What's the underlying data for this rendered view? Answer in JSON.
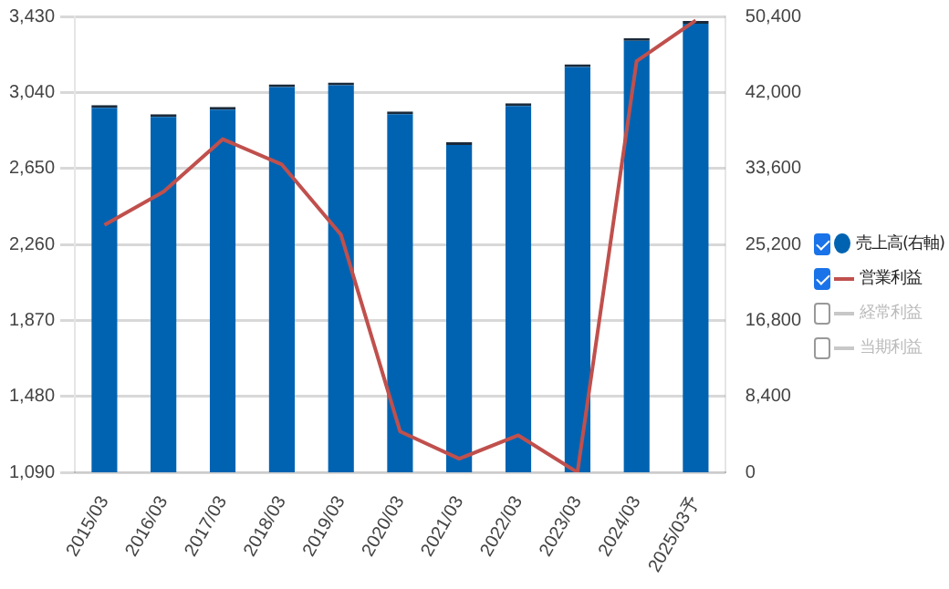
{
  "chart_data": {
    "type": "bar",
    "categories": [
      "2015/03",
      "2016/03",
      "2017/03",
      "2018/03",
      "2019/03",
      "2020/03",
      "2021/03",
      "2022/03",
      "2023/03",
      "2024/03",
      "2025/03予"
    ],
    "series": [
      {
        "name": "売上高(右軸)",
        "axis": "y2",
        "color": "#0063b1",
        "values": [
          40600,
          39600,
          40400,
          42900,
          43100,
          39900,
          36500,
          40800,
          45100,
          48000,
          49900
        ]
      },
      {
        "name": "営業利益",
        "type": "line",
        "color": "#c0504d",
        "values": [
          2360,
          2530,
          2800,
          2670,
          2310,
          1300,
          1160,
          1280,
          1090,
          3200,
          3410
        ]
      },
      {
        "name": "経常利益",
        "type": "line",
        "color": "#c8c8c8",
        "values": [
          null,
          null,
          null,
          null,
          null,
          null,
          null,
          null,
          null,
          null,
          null
        ]
      },
      {
        "name": "当期利益",
        "type": "line",
        "color": "#c8c8c8",
        "values": [
          null,
          null,
          null,
          null,
          null,
          null,
          null,
          null,
          null,
          null,
          null
        ]
      }
    ],
    "ylim": [
      1090,
      3430
    ],
    "yticks": [
      {
        "value": 1090,
        "label": "1,090"
      },
      {
        "value": 1480,
        "label": "1,480"
      },
      {
        "value": 1870,
        "label": "1,870"
      },
      {
        "value": 2260,
        "label": "2,260"
      },
      {
        "value": 2650,
        "label": "2,650"
      },
      {
        "value": 3040,
        "label": "3,040"
      },
      {
        "value": 3430,
        "label": "3,430"
      }
    ],
    "y2lim": [
      0,
      50400
    ],
    "y2ticks": [
      0,
      {
        "value": 8400,
        "label": "8,400"
      },
      {
        "value": 16800,
        "label": "16,800"
      },
      {
        "value": 25200,
        "label": "25,200"
      },
      {
        "value": 33600,
        "label": "33,600"
      },
      {
        "value": 42000,
        "label": "42,000"
      },
      {
        "value": 50400,
        "label": "50,400"
      }
    ],
    "grid": "y",
    "legend": "right",
    "marker": "none"
  }
}
